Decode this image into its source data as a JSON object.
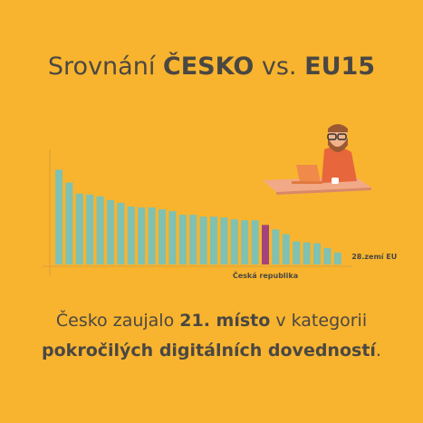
{
  "title": {
    "prefix": "Srovnání",
    "bold1": "ČESKO",
    "middle": "vs.",
    "bold2": "EU15"
  },
  "chart_data": {
    "type": "bar",
    "categories": [
      null,
      null,
      null,
      null,
      null,
      null,
      null,
      null,
      null,
      null,
      null,
      null,
      null,
      null,
      null,
      null,
      null,
      null,
      null,
      null,
      "Česká republika",
      null,
      null,
      null,
      null,
      null,
      null,
      null
    ],
    "values": [
      103,
      89,
      77,
      76,
      74,
      70,
      67,
      63,
      62,
      62,
      60,
      58,
      54,
      54,
      52,
      52,
      51,
      49,
      48,
      48,
      43,
      38,
      33,
      25,
      24,
      23,
      18,
      13
    ],
    "colors": [
      "#7fc1b2",
      "#7fc1b2",
      "#7fc1b2",
      "#7fc1b2",
      "#7fc1b2",
      "#7fc1b2",
      "#7fc1b2",
      "#7fc1b2",
      "#7fc1b2",
      "#7fc1b2",
      "#7fc1b2",
      "#7fc1b2",
      "#7fc1b2",
      "#7fc1b2",
      "#7fc1b2",
      "#7fc1b2",
      "#7fc1b2",
      "#7fc1b2",
      "#7fc1b2",
      "#7fc1b2",
      "#a3437c",
      "#7fc1b2",
      "#7fc1b2",
      "#7fc1b2",
      "#7fc1b2",
      "#7fc1b2",
      "#7fc1b2",
      "#7fc1b2"
    ],
    "ylim": [
      0,
      125
    ],
    "annotation": "28.zemí EU"
  },
  "text": {
    "line1": {
      "a": "Česko zaujalo",
      "b": "21. místo",
      "c": "v kategorii"
    },
    "line2": {
      "a": "pokročilých digitálních dovedností",
      "b": "."
    }
  }
}
